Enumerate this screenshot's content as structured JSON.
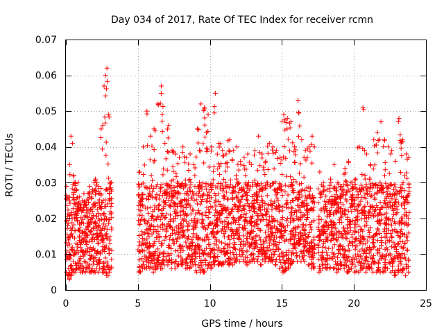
{
  "chart_data": {
    "type": "scatter",
    "title": "Day 034 of 2017, Rate Of TEC Index for receiver rcmn",
    "xlabel": "GPS time / hours",
    "ylabel": "ROTI / TECUs",
    "xlim": [
      0,
      25
    ],
    "ylim": [
      0,
      0.07
    ],
    "xticks": [
      0,
      5,
      10,
      15,
      20,
      25
    ],
    "xtick_labels": [
      "0",
      "5",
      "10",
      "15",
      "20",
      "25"
    ],
    "yticks": [
      0,
      0.01,
      0.02,
      0.03,
      0.04,
      0.05,
      0.06,
      0.07
    ],
    "ytick_labels": [
      "0",
      "0.01",
      "0.02",
      "0.03",
      "0.04",
      "0.05",
      "0.06",
      "0.07"
    ],
    "grid": true,
    "marker": "+",
    "color": "#ff0000",
    "series": [
      {
        "x": [
          0.0,
          0.1,
          0.2,
          0.3,
          0.4,
          0.5,
          0.6,
          0.7,
          0.8,
          0.9,
          1.0,
          1.1,
          1.2,
          1.3,
          1.4,
          1.5,
          1.6,
          1.7,
          1.8,
          1.9,
          2.0,
          2.1,
          2.2,
          2.3,
          2.4,
          2.5,
          2.6,
          2.7,
          2.8,
          2.9,
          3.0,
          3.1
        ],
        "y_min": [
          0.005,
          0.004,
          0.003,
          0.004,
          0.005,
          0.005,
          0.005,
          0.006,
          0.006,
          0.006,
          0.005,
          0.005,
          0.006,
          0.005,
          0.006,
          0.006,
          0.005,
          0.005,
          0.006,
          0.005,
          0.005,
          0.006,
          0.005,
          0.006,
          0.006,
          0.005,
          0.005,
          0.005,
          0.004,
          0.004,
          0.005,
          0.006
        ],
        "y_max": [
          0.029,
          0.026,
          0.035,
          0.043,
          0.041,
          0.032,
          0.03,
          0.028,
          0.03,
          0.026,
          0.024,
          0.025,
          0.027,
          0.024,
          0.025,
          0.027,
          0.029,
          0.026,
          0.028,
          0.03,
          0.031,
          0.03,
          0.029,
          0.027,
          0.045,
          0.046,
          0.057,
          0.06,
          0.062,
          0.049,
          0.03,
          0.03
        ]
      },
      {
        "x": [
          5.0,
          5.25,
          5.5,
          5.75,
          6.0,
          6.25,
          6.5,
          6.75,
          7.0,
          7.25,
          7.5,
          7.75,
          8.0,
          8.25,
          8.5,
          8.75,
          9.0,
          9.25,
          9.5,
          9.75,
          10.0,
          10.25,
          10.5,
          10.75,
          11.0,
          11.25,
          11.5,
          11.75,
          12.0,
          12.25,
          12.5,
          12.75,
          13.0,
          13.25,
          13.5,
          13.75,
          14.0,
          14.25,
          14.5,
          14.75,
          15.0,
          15.25,
          15.5,
          15.75,
          16.0,
          16.25,
          16.5,
          16.75,
          17.0,
          17.2
        ],
        "y_min": [
          0.005,
          0.006,
          0.006,
          0.006,
          0.005,
          0.006,
          0.006,
          0.007,
          0.007,
          0.006,
          0.006,
          0.007,
          0.007,
          0.006,
          0.006,
          0.007,
          0.005,
          0.005,
          0.005,
          0.006,
          0.006,
          0.007,
          0.007,
          0.007,
          0.008,
          0.007,
          0.007,
          0.008,
          0.008,
          0.008,
          0.007,
          0.008,
          0.008,
          0.008,
          0.007,
          0.008,
          0.008,
          0.008,
          0.007,
          0.006,
          0.005,
          0.006,
          0.007,
          0.008,
          0.008,
          0.008,
          0.008,
          0.007,
          0.006,
          0.006
        ],
        "y_max": [
          0.033,
          0.04,
          0.05,
          0.043,
          0.045,
          0.052,
          0.057,
          0.041,
          0.046,
          0.039,
          0.038,
          0.037,
          0.04,
          0.037,
          0.038,
          0.035,
          0.045,
          0.052,
          0.051,
          0.049,
          0.04,
          0.055,
          0.041,
          0.039,
          0.038,
          0.042,
          0.039,
          0.04,
          0.036,
          0.037,
          0.038,
          0.035,
          0.039,
          0.043,
          0.038,
          0.036,
          0.041,
          0.04,
          0.039,
          0.037,
          0.049,
          0.048,
          0.047,
          0.04,
          0.053,
          0.042,
          0.039,
          0.04,
          0.043,
          0.04
        ]
      },
      {
        "x": [
          17.5,
          17.75,
          18.0,
          18.25,
          18.5,
          18.75,
          19.0,
          19.25,
          19.5,
          19.75,
          20.0,
          20.25,
          20.5,
          20.75,
          21.0,
          21.25,
          21.5,
          21.75,
          22.0,
          22.25,
          22.5,
          22.75,
          23.0,
          23.25,
          23.5,
          23.75
        ],
        "y_min": [
          0.005,
          0.006,
          0.006,
          0.006,
          0.006,
          0.005,
          0.006,
          0.006,
          0.005,
          0.006,
          0.005,
          0.005,
          0.006,
          0.005,
          0.006,
          0.005,
          0.005,
          0.005,
          0.005,
          0.006,
          0.005,
          0.004,
          0.005,
          0.005,
          0.004,
          0.005
        ],
        "y_max": [
          0.033,
          0.03,
          0.028,
          0.031,
          0.035,
          0.03,
          0.029,
          0.034,
          0.036,
          0.03,
          0.031,
          0.04,
          0.051,
          0.038,
          0.035,
          0.042,
          0.044,
          0.047,
          0.042,
          0.04,
          0.039,
          0.036,
          0.048,
          0.042,
          0.038,
          0.037
        ]
      }
    ]
  }
}
